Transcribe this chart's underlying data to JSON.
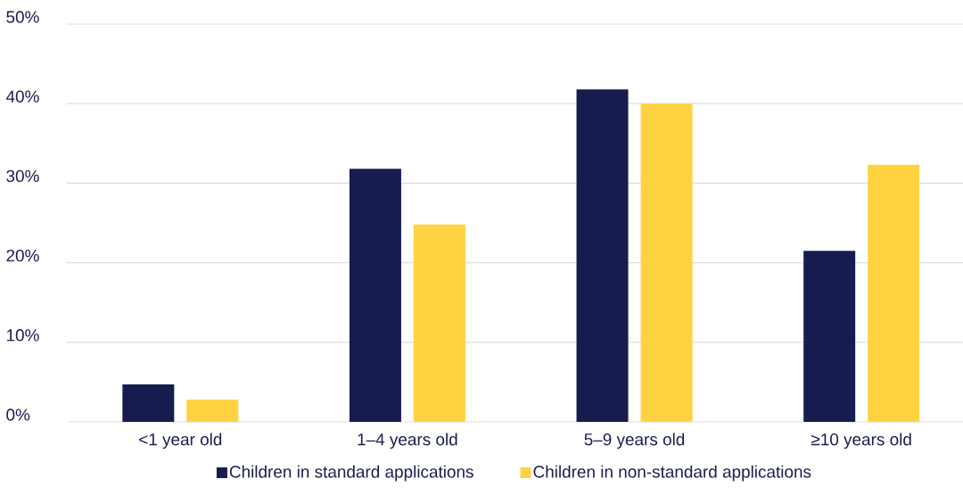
{
  "chart_data": {
    "type": "bar",
    "categories": [
      "<1 year old",
      "1–4 years old",
      "5–9 years old",
      "≥10 years old"
    ],
    "series": [
      {
        "name": "Children in standard applications",
        "color": "#171c4f",
        "values": [
          4.7,
          31.8,
          41.8,
          21.5
        ]
      },
      {
        "name": "Children in non-standard applications",
        "color": "#ffd23f",
        "values": [
          2.8,
          24.8,
          40.0,
          32.3
        ]
      }
    ],
    "ylim": [
      0,
      50
    ],
    "yticks": [
      {
        "value": 0,
        "label": "0%"
      },
      {
        "value": 10,
        "label": "10%"
      },
      {
        "value": 20,
        "label": "20%"
      },
      {
        "value": 30,
        "label": "30%"
      },
      {
        "value": 40,
        "label": "40%"
      },
      {
        "value": 50,
        "label": "50%"
      }
    ],
    "grid": "y",
    "legend": "bottom"
  }
}
